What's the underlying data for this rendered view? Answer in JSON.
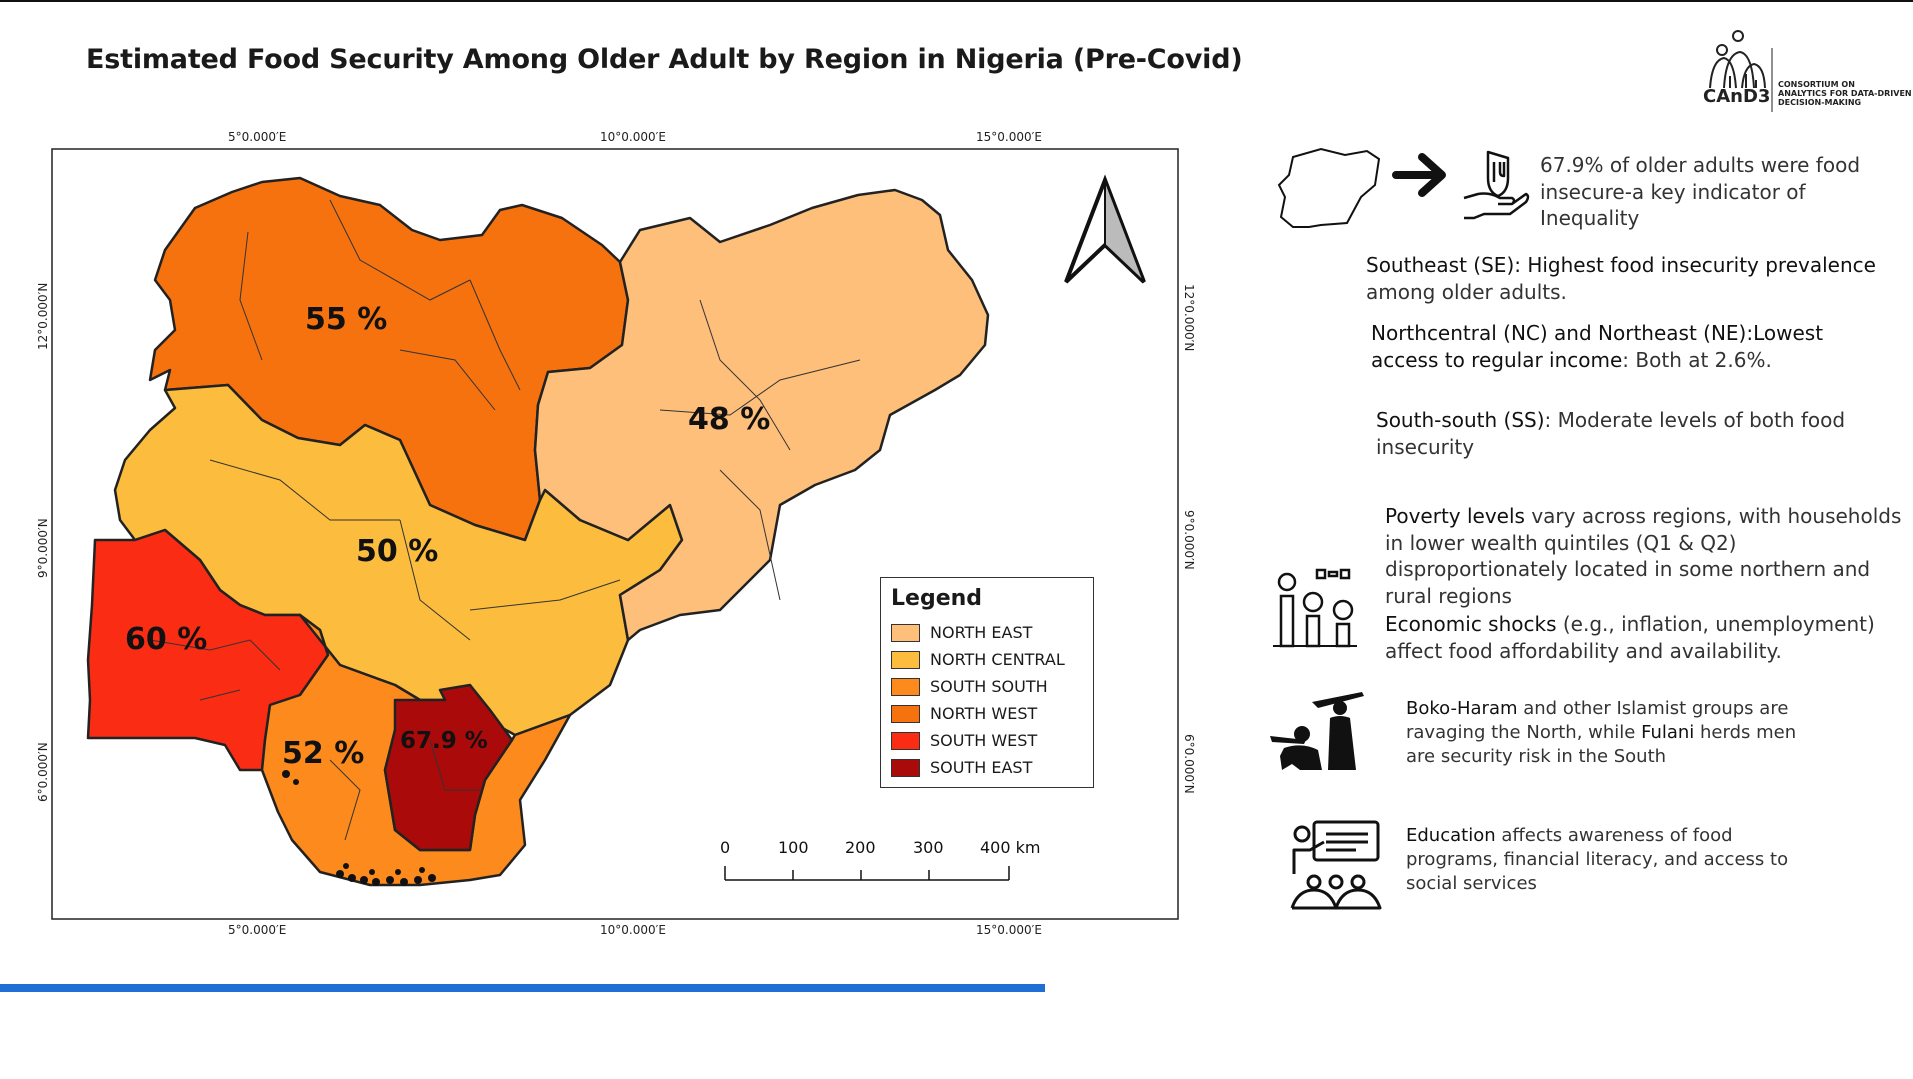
{
  "title": "Estimated Food Security Among Older Adult by Region in Nigeria (Pre-Covid)",
  "logo": {
    "wordmark": "CAnD3",
    "caption_lines": [
      "CONSORTIUM ON",
      "ANALYTICS FOR DATA-DRIVEN",
      "DECISION-MAKING"
    ]
  },
  "map": {
    "coords_top": [
      "5°0.000′E",
      "10°0.000′E",
      "15°0.000′E"
    ],
    "coords_bottom": [
      "5°0.000′E",
      "10°0.000′E",
      "15°0.000′E"
    ],
    "coords_left": [
      "12°0.000′N",
      "9°0.000′N",
      "6°0.000′N"
    ],
    "coords_right": [
      "12°0.000′N",
      "9°0.000′N",
      "6°0.000′N"
    ],
    "regions": [
      {
        "name": "NORTH EAST",
        "label": "48 %",
        "color": "#fdbf7a"
      },
      {
        "name": "NORTH CENTRAL",
        "label": "50 %",
        "color": "#fcbc3d"
      },
      {
        "name": "SOUTH SOUTH",
        "label": "52 %",
        "color": "#fd8a1c"
      },
      {
        "name": "NORTH WEST",
        "label": "55 %",
        "color": "#f6720f"
      },
      {
        "name": "SOUTH WEST",
        "label": "60 %",
        "color": "#fa2c14"
      },
      {
        "name": "SOUTH EAST",
        "label": "67.9 %",
        "color": "#aa0a0a"
      }
    ],
    "legend_title": "Legend",
    "scale": {
      "ticks": [
        "0",
        "100",
        "200",
        "300"
      ],
      "last": "400 km"
    }
  },
  "info": {
    "headline": "67.9% of older adults were food insecure-a key indicator of Inequality",
    "se_lead": "Southeast (SE): Highest food insecurity prevalence",
    "se_rest": "among older adults.",
    "nc_lead": "Northcentral (NC) and Northeast (NE):Lowest access to regular income",
    "nc_rest": ": Both at 2.6%.",
    "ss_lead": "South-south (SS)",
    "ss_rest": ": Moderate levels of both food insecurity",
    "poverty_lead": "Poverty levels",
    "poverty_rest": " vary across regions, with households in lower wealth quintiles (Q1 & Q2) disproportionately located in some northern and rural regions",
    "shocks_lead": "Economic shocks",
    "shocks_rest": " (e.g., inflation, unemployment) affect food affordability and availability.",
    "boko_lead": "Boko-Haram",
    "boko_mid": " and other Islamist groups are ravaging the North, while ",
    "fulani": "Fulani",
    "boko_rest": " herds men are security risk in the South",
    "edu_lead": "Education",
    "edu_rest": " affects awareness of food programs, financial literacy, and access to social services"
  },
  "icons": [
    "nigeria-outline-icon",
    "right-arrow-icon",
    "food-aid-hand-icon",
    "money-chart-icon",
    "armed-group-icon",
    "classroom-icon",
    "north-arrow-icon"
  ]
}
